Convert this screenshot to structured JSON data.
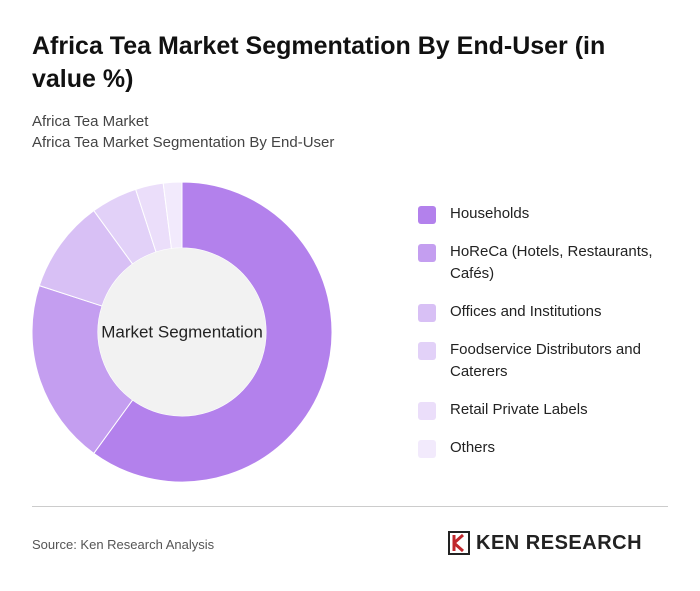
{
  "chart_data": {
    "type": "donut",
    "title": "Africa Tea Market Segmentation By End-User (in value %)",
    "subtitle_lines": [
      "Africa Tea Market",
      "Africa Tea Market Segmentation By End-User"
    ],
    "center_label": "Market Segmentation",
    "categories": [
      "Households",
      "HoReCa (Hotels, Restaurants, Cafés)",
      "Offices and Institutions",
      "Foodservice Distributors and Caterers",
      "Retail Private Labels",
      "Others"
    ],
    "values": [
      60,
      20,
      10,
      5,
      3,
      2
    ],
    "colors": [
      "#b381ec",
      "#c49ef0",
      "#d8c0f5",
      "#e2d1f8",
      "#ebdefa",
      "#f2eafc"
    ],
    "source": "Source: Ken Research Analysis",
    "logo": "KEN RESEARCH"
  }
}
